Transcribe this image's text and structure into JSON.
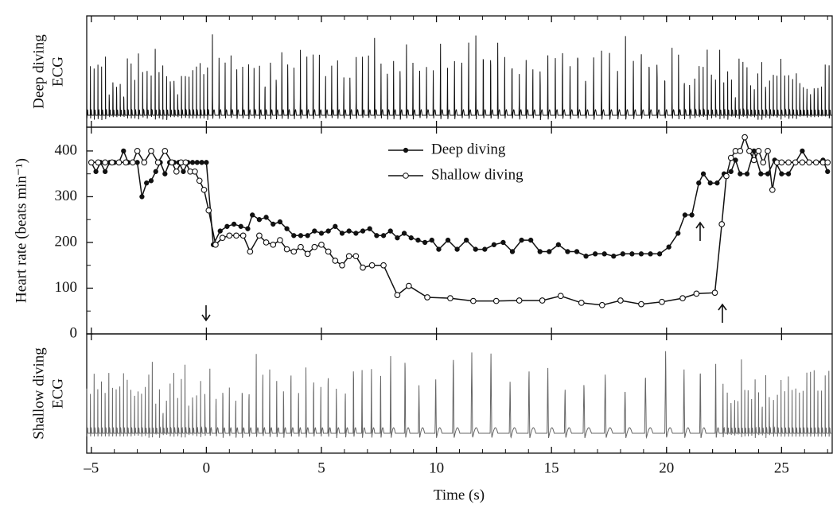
{
  "chart_data": {
    "type": "line",
    "x_label": "Time (s)",
    "y_label": "Heart rate (beats min⁻¹)",
    "top_panel_label": [
      "Deep diving",
      "ECG"
    ],
    "bottom_panel_label": [
      "Shallow diving",
      "ECG"
    ],
    "xlim": [
      -5.2,
      27.2
    ],
    "xticks": [
      {
        "value": -5,
        "label": "–5"
      },
      0,
      5,
      10,
      15,
      20,
      25
    ],
    "ylim": [
      0,
      452
    ],
    "yticks": [
      0,
      100,
      200,
      300,
      400
    ],
    "legend": "top center",
    "series": [
      {
        "name": "Deep diving",
        "color": "#111",
        "marker_fill": "#111",
        "x": [
          -5,
          -4.8,
          -4.6,
          -4.4,
          -4.2,
          -4,
          -3.8,
          -3.6,
          -3.4,
          -3.2,
          -3,
          -2.8,
          -2.6,
          -2.4,
          -2.2,
          -2,
          -1.8,
          -1.6,
          -1.4,
          -1.2,
          -1,
          -0.8,
          -0.6,
          -0.4,
          -0.2,
          0,
          0.3,
          0.6,
          0.9,
          1.2,
          1.5,
          1.8,
          2.0,
          2.3,
          2.6,
          2.9,
          3.2,
          3.5,
          3.8,
          4.1,
          4.4,
          4.7,
          5.0,
          5.3,
          5.6,
          5.9,
          6.2,
          6.5,
          6.8,
          7.1,
          7.4,
          7.7,
          8.0,
          8.3,
          8.6,
          8.9,
          9.2,
          9.5,
          9.8,
          10.1,
          10.5,
          10.9,
          11.3,
          11.7,
          12.1,
          12.5,
          12.9,
          13.3,
          13.7,
          14.1,
          14.5,
          14.9,
          15.3,
          15.7,
          16.1,
          16.5,
          16.9,
          17.3,
          17.7,
          18.1,
          18.5,
          18.9,
          19.3,
          19.7,
          20.1,
          20.5,
          20.8,
          21.1,
          21.4,
          21.6,
          21.9,
          22.2,
          22.5,
          22.8,
          23.0,
          23.2,
          23.5,
          23.8,
          24.1,
          24.4,
          24.7,
          25.0,
          25.3,
          25.6,
          25.9,
          26.2,
          26.5,
          26.8,
          27
        ],
        "values": [
          375,
          355,
          375,
          355,
          375,
          375,
          375,
          400,
          375,
          375,
          375,
          300,
          330,
          335,
          355,
          375,
          350,
          375,
          375,
          375,
          355,
          375,
          375,
          375,
          375,
          375,
          195,
          225,
          235,
          240,
          235,
          230,
          260,
          250,
          255,
          240,
          245,
          230,
          215,
          215,
          215,
          225,
          220,
          225,
          235,
          220,
          225,
          220,
          225,
          230,
          215,
          215,
          225,
          210,
          220,
          210,
          205,
          200,
          205,
          185,
          205,
          185,
          205,
          185,
          185,
          195,
          200,
          180,
          205,
          205,
          180,
          180,
          195,
          180,
          180,
          170,
          175,
          175,
          170,
          175,
          175,
          175,
          175,
          175,
          190,
          220,
          260,
          260,
          330,
          350,
          330,
          330,
          350,
          355,
          380,
          350,
          350,
          400,
          350,
          350,
          380,
          350,
          350,
          375,
          400,
          375,
          375,
          380,
          355
        ]
      },
      {
        "name": "Shallow diving",
        "color": "#111",
        "marker_fill": "#fff",
        "x": [
          -5,
          -4.7,
          -4.4,
          -4.1,
          -3.8,
          -3.5,
          -3.2,
          -3,
          -2.7,
          -2.4,
          -2.1,
          -1.8,
          -1.5,
          -1.3,
          -1.1,
          -0.9,
          -0.7,
          -0.5,
          -0.3,
          -0.1,
          0.1,
          0.4,
          0.7,
          1.0,
          1.3,
          1.6,
          1.9,
          2.3,
          2.6,
          2.9,
          3.2,
          3.5,
          3.8,
          4.1,
          4.4,
          4.7,
          5.0,
          5.3,
          5.6,
          5.9,
          6.2,
          6.5,
          6.8,
          7.2,
          7.7,
          8.3,
          8.8,
          9.6,
          10.6,
          11.6,
          12.6,
          13.6,
          14.6,
          15.4,
          16.3,
          17.2,
          18.0,
          18.9,
          19.8,
          20.7,
          21.3,
          22.1,
          22.4,
          22.6,
          22.8,
          23.0,
          23.2,
          23.4,
          23.6,
          23.8,
          24.0,
          24.2,
          24.4,
          24.6,
          24.8,
          25.0,
          25.3,
          25.6,
          25.9,
          26.2,
          26.5,
          26.8,
          27.0
        ],
        "values": [
          375,
          375,
          375,
          375,
          375,
          375,
          375,
          400,
          375,
          400,
          375,
          400,
          375,
          355,
          375,
          375,
          355,
          355,
          335,
          315,
          270,
          195,
          210,
          215,
          215,
          215,
          180,
          215,
          200,
          195,
          205,
          185,
          180,
          190,
          175,
          190,
          195,
          180,
          160,
          150,
          170,
          170,
          145,
          150,
          150,
          85,
          105,
          80,
          78,
          72,
          72,
          73,
          73,
          83,
          68,
          63,
          73,
          65,
          70,
          78,
          88,
          90,
          240,
          345,
          385,
          400,
          400,
          430,
          400,
          380,
          400,
          375,
          400,
          315,
          375,
          375,
          375,
          375,
          375,
          375,
          375,
          375,
          375
        ]
      }
    ]
  }
}
